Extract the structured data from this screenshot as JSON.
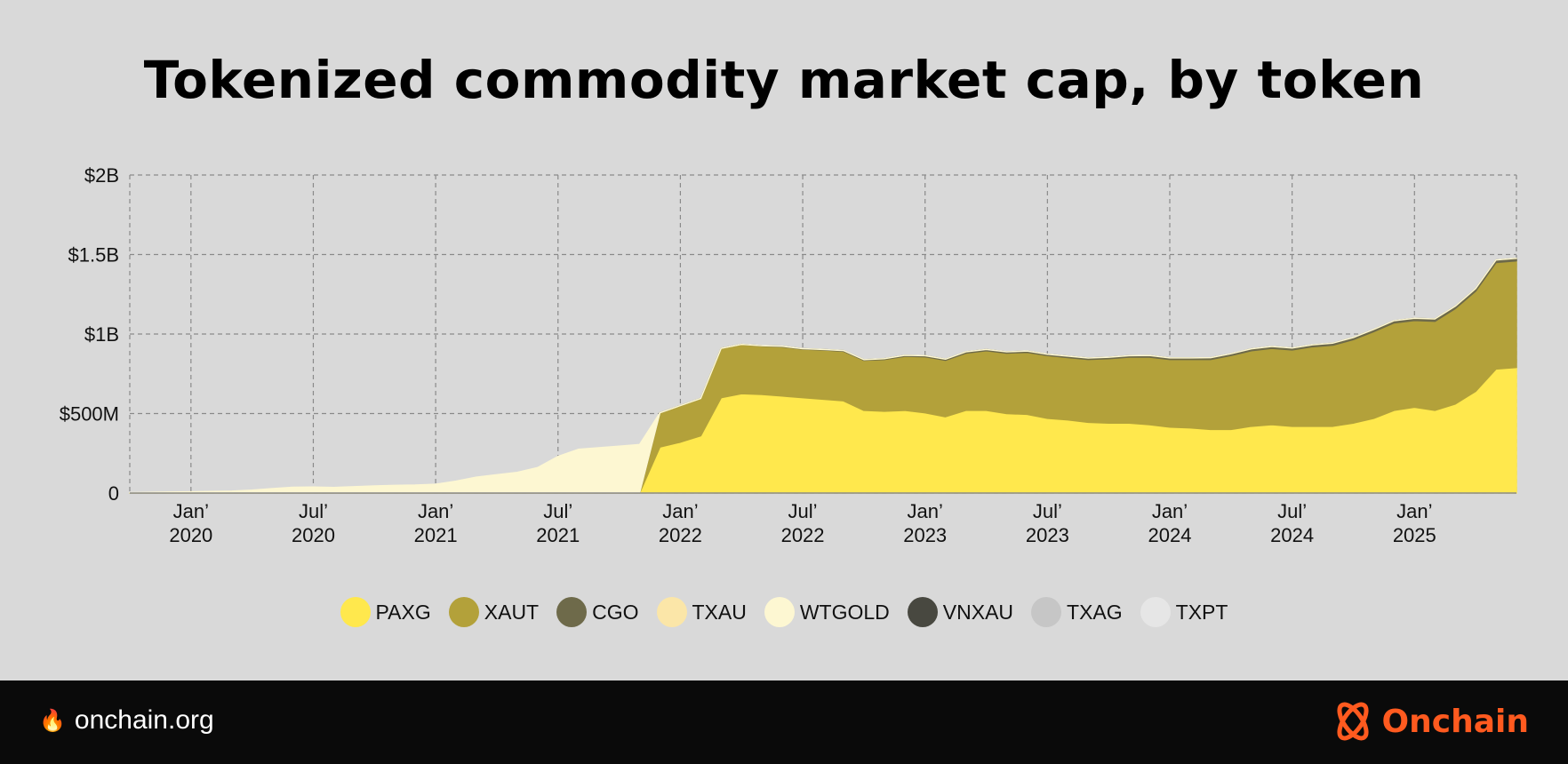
{
  "chart_data": {
    "type": "area",
    "stacked": true,
    "title": "Tokenized commodity market cap, by token",
    "x": [
      "2019-10",
      "2019-11",
      "2019-12",
      "2020-01",
      "2020-02",
      "2020-03",
      "2020-04",
      "2020-05",
      "2020-06",
      "2020-07",
      "2020-08",
      "2020-09",
      "2020-10",
      "2020-11",
      "2020-12",
      "2021-01",
      "2021-02",
      "2021-03",
      "2021-04",
      "2021-05",
      "2021-06",
      "2021-07",
      "2021-08",
      "2021-09",
      "2021-10",
      "2021-11",
      "2021-12",
      "2022-01",
      "2022-02",
      "2022-03",
      "2022-04",
      "2022-05",
      "2022-06",
      "2022-07",
      "2022-08",
      "2022-09",
      "2022-10",
      "2022-11",
      "2022-12",
      "2023-01",
      "2023-02",
      "2023-03",
      "2023-04",
      "2023-05",
      "2023-06",
      "2023-07",
      "2023-08",
      "2023-09",
      "2023-10",
      "2023-11",
      "2023-12",
      "2024-01",
      "2024-02",
      "2024-03",
      "2024-04",
      "2024-05",
      "2024-06",
      "2024-07",
      "2024-08",
      "2024-09",
      "2024-10",
      "2024-11",
      "2024-12",
      "2025-01",
      "2025-02",
      "2025-03",
      "2025-04",
      "2025-05",
      "2025-06"
    ],
    "series": [
      {
        "name": "PAXG",
        "color": "#ffe84d",
        "values": [
          0,
          0,
          0,
          0,
          0,
          0,
          0,
          0,
          0,
          0,
          0,
          0,
          0,
          0,
          0,
          0,
          0,
          0,
          0,
          0,
          0,
          0,
          0,
          0,
          0,
          0,
          290,
          320,
          360,
          600,
          625,
          620,
          610,
          600,
          590,
          580,
          520,
          515,
          520,
          505,
          480,
          520,
          520,
          500,
          495,
          470,
          460,
          445,
          440,
          440,
          430,
          415,
          410,
          400,
          400,
          420,
          430,
          420,
          420,
          420,
          440,
          470,
          520,
          540,
          520,
          560,
          640,
          780,
          790
        ]
      },
      {
        "name": "XAUT",
        "color": "#b3a13a",
        "values": [
          0,
          0,
          0,
          0,
          0,
          0,
          0,
          0,
          0,
          0,
          0,
          0,
          0,
          0,
          0,
          0,
          0,
          0,
          0,
          0,
          0,
          0,
          0,
          0,
          0,
          0,
          215,
          230,
          235,
          310,
          310,
          305,
          310,
          305,
          310,
          312,
          315,
          325,
          340,
          352,
          355,
          360,
          375,
          380,
          390,
          395,
          392,
          395,
          405,
          415,
          425,
          425,
          430,
          440,
          465,
          475,
          480,
          480,
          500,
          510,
          525,
          545,
          550,
          545,
          560,
          600,
          630,
          670,
          670
        ]
      },
      {
        "name": "CGO",
        "color": "#6e6a4a",
        "values": [
          0,
          0,
          0,
          0,
          0,
          0,
          0,
          0,
          0,
          0,
          0,
          0,
          0,
          0,
          0,
          0,
          0,
          0,
          0,
          0,
          0,
          0,
          0,
          0,
          0,
          0,
          0,
          0,
          0,
          0,
          0,
          2,
          3,
          3,
          3,
          4,
          4,
          5,
          6,
          7,
          7,
          8,
          8,
          8,
          8,
          8,
          9,
          9,
          9,
          9,
          10,
          10,
          10,
          11,
          11,
          12,
          12,
          12,
          12,
          13,
          13,
          14,
          14,
          14,
          15,
          15,
          16,
          16,
          16
        ]
      },
      {
        "name": "TXAU",
        "color": "#fbe6a8",
        "values": [
          0,
          0,
          0,
          0,
          0,
          0,
          0,
          0,
          0,
          0,
          0,
          0,
          0,
          0,
          0,
          0,
          0,
          0,
          0,
          0,
          0,
          0,
          0,
          0,
          0,
          0,
          0,
          0,
          0,
          0,
          0,
          0,
          0,
          0,
          0,
          0,
          0,
          0,
          0,
          0,
          0,
          0,
          0,
          0,
          0,
          0,
          0,
          0,
          0,
          0,
          0,
          0,
          0,
          0,
          0,
          0,
          0,
          0,
          0,
          0,
          0,
          0,
          0,
          0,
          0,
          0,
          0,
          0,
          0
        ]
      },
      {
        "name": "WTGOLD",
        "color": "#fdf7d2",
        "values": [
          2,
          4,
          6,
          8,
          10,
          12,
          18,
          28,
          36,
          38,
          35,
          40,
          45,
          48,
          50,
          55,
          75,
          100,
          115,
          130,
          160,
          230,
          275,
          285,
          295,
          305,
          0,
          0,
          0,
          0,
          0,
          0,
          0,
          0,
          0,
          0,
          0,
          0,
          0,
          0,
          0,
          0,
          0,
          0,
          0,
          0,
          0,
          0,
          0,
          0,
          0,
          0,
          0,
          0,
          0,
          0,
          0,
          0,
          0,
          0,
          0,
          0,
          0,
          0,
          0,
          0,
          0,
          0,
          0
        ]
      },
      {
        "name": "VNXAU",
        "color": "#484840",
        "values": [
          0,
          0,
          0,
          0,
          0,
          0,
          0,
          0,
          0,
          0,
          0,
          0,
          0,
          0,
          0,
          0,
          0,
          0,
          0,
          0,
          0,
          0,
          0,
          0,
          0,
          0,
          0,
          0,
          0,
          0,
          0,
          0,
          0,
          0,
          0,
          0,
          0,
          0,
          0,
          0,
          0,
          0,
          0,
          0,
          0,
          0,
          0,
          0,
          0,
          0,
          0,
          0,
          0,
          0,
          0,
          0,
          0,
          0,
          0,
          0,
          0,
          0,
          0,
          0,
          0,
          0,
          0,
          0,
          0
        ]
      },
      {
        "name": "TXAG",
        "color": "#c6c6c6",
        "values": [
          0,
          0,
          0,
          0,
          0,
          0,
          0,
          0,
          0,
          0,
          0,
          0,
          0,
          0,
          0,
          0,
          0,
          0,
          0,
          0,
          0,
          0,
          0,
          0,
          0,
          0,
          0,
          0,
          0,
          0,
          0,
          0,
          0,
          0,
          0,
          0,
          0,
          0,
          0,
          0,
          0,
          0,
          0,
          0,
          0,
          0,
          0,
          0,
          0,
          0,
          0,
          0,
          0,
          0,
          0,
          0,
          0,
          0,
          0,
          0,
          0,
          0,
          0,
          0,
          0,
          0,
          0,
          0,
          0
        ]
      },
      {
        "name": "TXPT",
        "color": "#e6e6e6",
        "values": [
          0,
          0,
          0,
          0,
          0,
          0,
          0,
          0,
          0,
          0,
          0,
          0,
          0,
          0,
          0,
          0,
          0,
          0,
          0,
          0,
          0,
          0,
          0,
          0,
          0,
          0,
          0,
          0,
          0,
          0,
          0,
          0,
          0,
          0,
          0,
          0,
          0,
          0,
          0,
          0,
          0,
          0,
          0,
          0,
          0,
          0,
          0,
          0,
          0,
          0,
          0,
          0,
          0,
          0,
          0,
          0,
          0,
          0,
          0,
          0,
          0,
          0,
          0,
          0,
          0,
          0,
          0,
          0,
          0
        ]
      }
    ],
    "ylim": [
      0,
      2000000000
    ],
    "xlim": [
      "2019-10",
      "2025-06"
    ],
    "y_ticks": [
      {
        "value": 0,
        "label": "0"
      },
      {
        "value": 500000000,
        "label": "$500M"
      },
      {
        "value": 1000000000,
        "label": "$1B"
      },
      {
        "value": 1500000000,
        "label": "$1.5B"
      },
      {
        "value": 2000000000,
        "label": "$2B"
      }
    ],
    "x_ticks": [
      {
        "date": "2020-01",
        "line1": "Jan’",
        "line2": "2020"
      },
      {
        "date": "2020-07",
        "line1": "Jul’",
        "line2": "2020"
      },
      {
        "date": "2021-01",
        "line1": "Jan’",
        "line2": "2021"
      },
      {
        "date": "2021-07",
        "line1": "Jul’",
        "line2": "2021"
      },
      {
        "date": "2022-01",
        "line1": "Jan’",
        "line2": "2022"
      },
      {
        "date": "2022-07",
        "line1": "Jul’",
        "line2": "2022"
      },
      {
        "date": "2023-01",
        "line1": "Jan’",
        "line2": "2023"
      },
      {
        "date": "2023-07",
        "line1": "Jul’",
        "line2": "2023"
      },
      {
        "date": "2024-01",
        "line1": "Jan’",
        "line2": "2024"
      },
      {
        "date": "2024-07",
        "line1": "Jul’",
        "line2": "2024"
      },
      {
        "date": "2025-01",
        "line1": "Jan’",
        "line2": "2025"
      }
    ],
    "grid": true,
    "legend_position": "bottom"
  },
  "footer": {
    "site": "onchain.org",
    "brand": "Onchain"
  }
}
